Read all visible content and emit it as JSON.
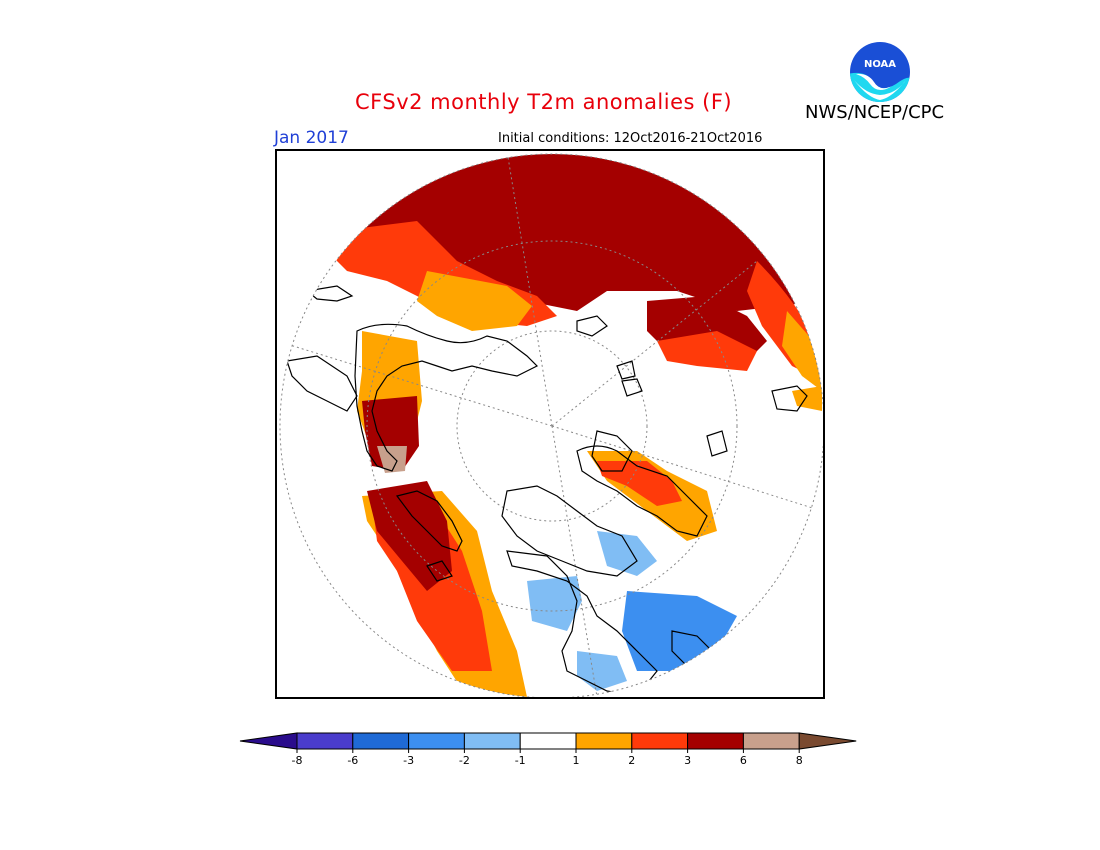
{
  "title": "CFSv2 monthly T2m anomalies (F)",
  "month": "Jan 2017",
  "initial_conditions": "Initial conditions: 12Oct2016-21Oct2016",
  "agency": "NWS/NCEP/CPC",
  "logo": {
    "icon": "noaa-logo",
    "text": "NOAA"
  },
  "map": {
    "projection": "north-polar-stereographic",
    "variable": "T2m anomaly (F)",
    "colors": {
      "land_outline": "#000000",
      "grid": "#888888",
      "neutral": "#ffffff"
    }
  },
  "colorbar": {
    "colors": [
      "#2a0c8c",
      "#4a3ccc",
      "#1f6ad6",
      "#3c8ff0",
      "#80bdf4",
      "#ffffff",
      "#ffa500",
      "#ff3a0a",
      "#a40000",
      "#c8a08c",
      "#7a4a30"
    ],
    "labels": [
      "-8",
      "-6",
      "-3",
      "-2",
      "-1",
      "1",
      "2",
      "3",
      "6",
      "8"
    ]
  }
}
